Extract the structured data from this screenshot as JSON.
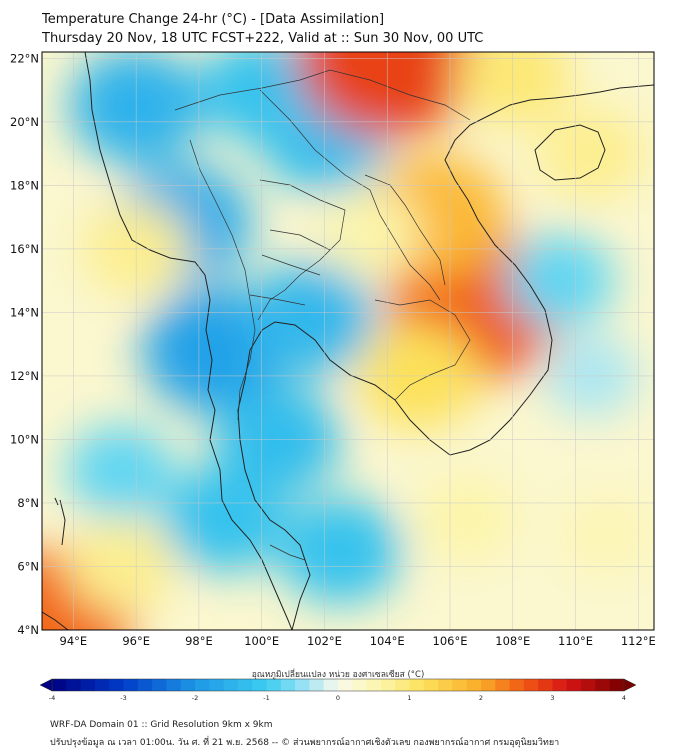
{
  "header": {
    "title": "Temperature Change 24-hr (°C) - [Data Assimilation]",
    "subtitle": "Thursday 20 Nov, 18 UTC FCST+222, Valid at :: Sun 30 Nov, 00 UTC"
  },
  "map": {
    "lon_range": [
      93,
      112.5
    ],
    "lat_range": [
      4,
      22.2
    ],
    "lon_ticks": [
      94,
      96,
      98,
      100,
      102,
      104,
      106,
      108,
      110,
      112
    ],
    "lat_ticks": [
      4,
      6,
      8,
      10,
      12,
      14,
      16,
      18,
      20,
      22
    ],
    "lon_labels": [
      "94°E",
      "96°E",
      "98°E",
      "100°E",
      "102°E",
      "104°E",
      "106°E",
      "108°E",
      "110°E",
      "112°E"
    ],
    "lat_labels": [
      "4°N",
      "6°N",
      "8°N",
      "10°N",
      "12°N",
      "14°N",
      "16°N",
      "18°N",
      "20°N",
      "22°N"
    ],
    "field_centers": [
      {
        "lon": 97.5,
        "lat": 16.8,
        "value": -1.6
      },
      {
        "lon": 96.0,
        "lat": 20.5,
        "value": -1.5
      },
      {
        "lon": 98.5,
        "lat": 12.8,
        "value": -1.8
      },
      {
        "lon": 101.5,
        "lat": 13.8,
        "value": -1.4
      },
      {
        "lon": 100.5,
        "lat": 10.0,
        "value": -1.3
      },
      {
        "lon": 98.8,
        "lat": 7.5,
        "value": -1.2
      },
      {
        "lon": 95.5,
        "lat": 9.0,
        "value": -0.8
      },
      {
        "lon": 102.5,
        "lat": 6.5,
        "value": -1.2
      },
      {
        "lon": 102.0,
        "lat": 19.5,
        "value": -1.3
      },
      {
        "lon": 100.0,
        "lat": 21.0,
        "value": -1.2
      },
      {
        "lon": 106.8,
        "lat": 14.2,
        "value": 2.6
      },
      {
        "lon": 104.0,
        "lat": 22.0,
        "value": 2.8
      },
      {
        "lon": 105.5,
        "lat": 17.0,
        "value": 1.8
      },
      {
        "lon": 105.0,
        "lat": 12.0,
        "value": 1.2
      },
      {
        "lon": 108.0,
        "lat": 21.5,
        "value": 1.0
      },
      {
        "lon": 93.2,
        "lat": 4.2,
        "value": 2.5
      },
      {
        "lon": 96.0,
        "lat": 16.0,
        "value": 0.8
      },
      {
        "lon": 110.5,
        "lat": 12.0,
        "value": -0.4
      },
      {
        "lon": 109.5,
        "lat": 15.0,
        "value": -0.8
      },
      {
        "lon": 106.5,
        "lat": 7.5,
        "value": 0.6
      },
      {
        "lon": 111.0,
        "lat": 7.0,
        "value": 0.5
      },
      {
        "lon": 95.5,
        "lat": 6.0,
        "value": 0.8
      },
      {
        "lon": 103.5,
        "lat": 16.5,
        "value": 0.6
      },
      {
        "lon": 110.5,
        "lat": 19.0,
        "value": 0.8
      }
    ]
  },
  "colorbar": {
    "label": "อุณหภูมิเปลี่ยนแปลง หน่วย องศาเซลเซียส (°C)",
    "min": -4,
    "max": 4,
    "ticks": [
      "-4",
      "-3",
      "-2",
      "-1",
      "0",
      "1",
      "2",
      "3",
      "4"
    ]
  },
  "footer": {
    "line1": "WRF-DA Domain 01 :: Grid Resolution 9km x 9km",
    "line2": "ปรับปรุงข้อมูล ณ เวลา 01:00น. วัน ศ. ที่ 21 พ.ย. 2568 -- © ส่วนพยากรณ์อากาศเชิงตัวเลข กองพยากรณ์อากาศ กรมอุตุนิยมวิทยา"
  }
}
